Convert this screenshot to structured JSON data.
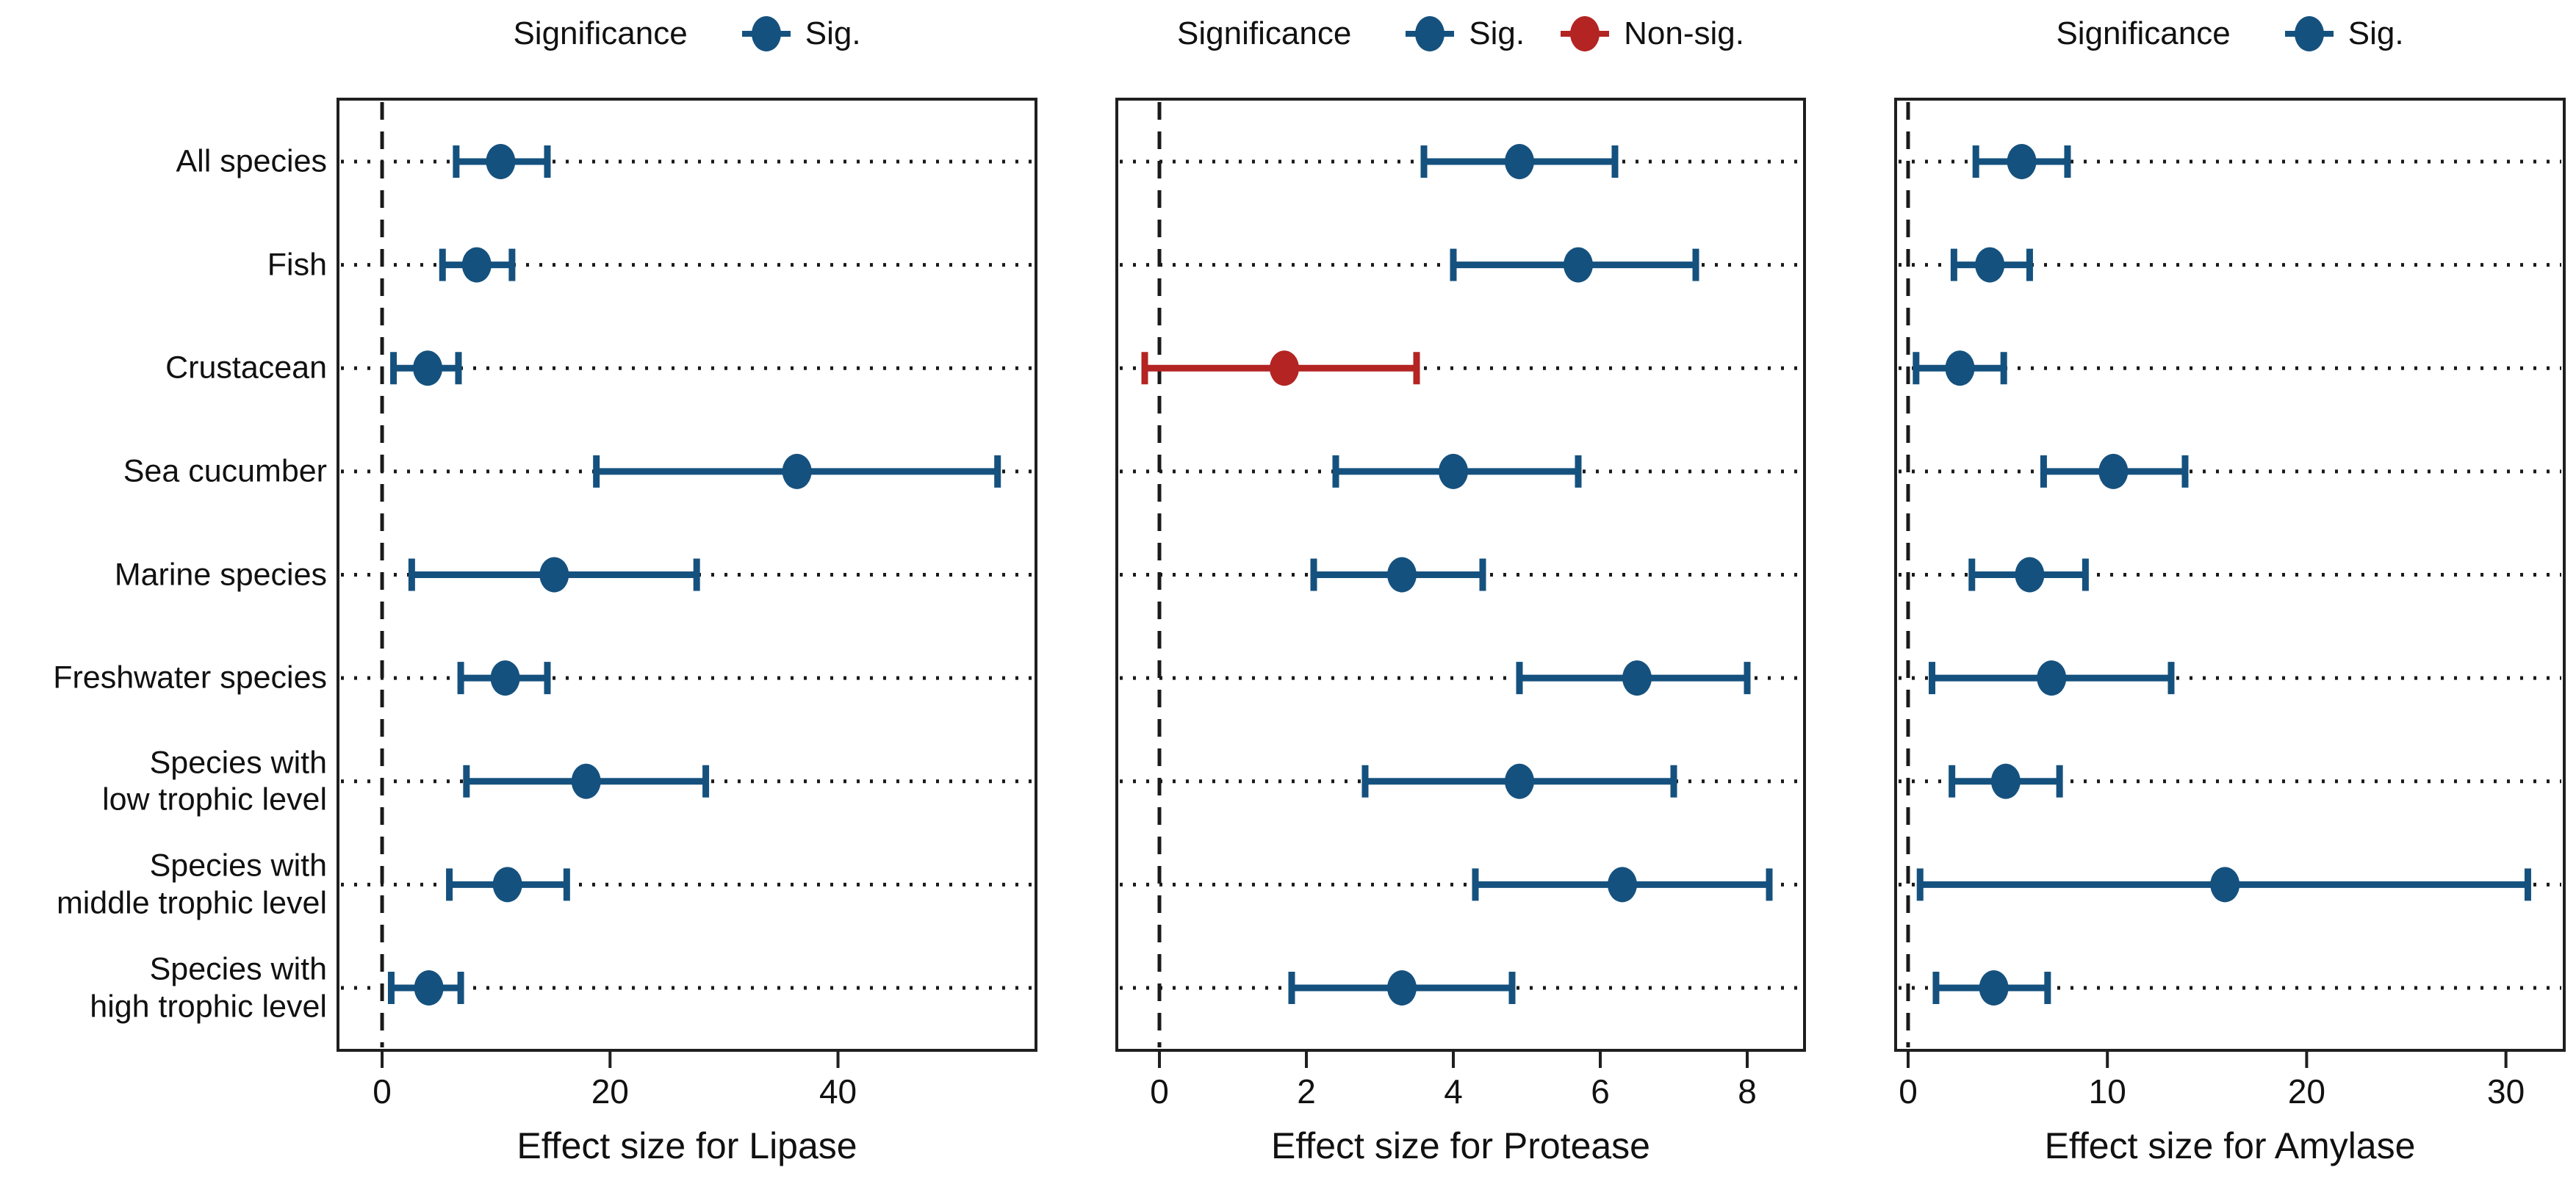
{
  "y_axis": {
    "categories": [
      "All species",
      "Fish",
      "Crustacean",
      "Sea cucumber",
      "Marine species",
      "Freshwater species",
      "Species with\nlow trophic level",
      "Species with\nmiddle trophic level",
      "Species with\nhigh trophic level"
    ]
  },
  "colors": {
    "significant": "#15517e",
    "non_significant": "#b32422",
    "axis": "#1f1f1f"
  },
  "chart_data": [
    {
      "type": "scatter",
      "subtype": "forest-plot-error-bars",
      "xlabel": "Effect size for Lipase",
      "legend_title": "Significance",
      "legend_items": [
        {
          "label": "Sig.",
          "color": "#15517e"
        }
      ],
      "categories": [
        "All species",
        "Fish",
        "Crustacean",
        "Sea cucumber",
        "Marine species",
        "Freshwater species",
        "Species with low trophic level",
        "Species with middle trophic level",
        "Species with high trophic level"
      ],
      "series": [
        {
          "name": "mean",
          "values": [
            10.4,
            8.3,
            4.0,
            36.4,
            15.1,
            10.8,
            17.9,
            11.0,
            4.1
          ]
        },
        {
          "name": "ci_low",
          "values": [
            6.5,
            5.3,
            1.0,
            18.8,
            2.6,
            6.9,
            7.4,
            5.9,
            0.8
          ]
        },
        {
          "name": "ci_high",
          "values": [
            14.5,
            11.4,
            6.7,
            54.0,
            27.6,
            14.5,
            28.4,
            16.2,
            6.9
          ]
        },
        {
          "name": "significant",
          "values": [
            true,
            true,
            true,
            true,
            true,
            true,
            true,
            true,
            true
          ]
        }
      ],
      "xticks": [
        0,
        20,
        40
      ],
      "xlim": [
        -4,
        57.5
      ],
      "refline_x": 0,
      "grid": "dotted-horizontal-rows",
      "legend_position": "top-center"
    },
    {
      "type": "scatter",
      "subtype": "forest-plot-error-bars",
      "xlabel": "Effect size for Protease",
      "legend_title": "Significance",
      "legend_items": [
        {
          "label": "Sig.",
          "color": "#15517e"
        },
        {
          "label": "Non-sig.",
          "color": "#b32422"
        }
      ],
      "categories": [
        "All species",
        "Fish",
        "Crustacean",
        "Sea cucumber",
        "Marine species",
        "Freshwater species",
        "Species with low trophic level",
        "Species with middle trophic level",
        "Species with high trophic level"
      ],
      "series": [
        {
          "name": "mean",
          "values": [
            4.9,
            5.7,
            1.7,
            4.0,
            3.3,
            6.5,
            4.9,
            6.3,
            3.3
          ]
        },
        {
          "name": "ci_low",
          "values": [
            3.6,
            4.0,
            -0.2,
            2.4,
            2.1,
            4.9,
            2.8,
            4.3,
            1.8
          ]
        },
        {
          "name": "ci_high",
          "values": [
            6.2,
            7.3,
            3.5,
            5.7,
            4.4,
            8.0,
            7.0,
            8.3,
            4.8
          ]
        },
        {
          "name": "significant",
          "values": [
            true,
            true,
            false,
            true,
            true,
            true,
            true,
            true,
            true
          ]
        }
      ],
      "xticks": [
        0,
        2,
        4,
        6,
        8
      ],
      "xlim": [
        -0.6,
        8.8
      ],
      "refline_x": 0,
      "grid": "dotted-horizontal-rows",
      "legend_position": "top-center"
    },
    {
      "type": "scatter",
      "subtype": "forest-plot-error-bars",
      "xlabel": "Effect size for Amylase",
      "legend_title": "Significance",
      "legend_items": [
        {
          "label": "Sig.",
          "color": "#15517e"
        }
      ],
      "categories": [
        "All species",
        "Fish",
        "Crustacean",
        "Sea cucumber",
        "Marine species",
        "Freshwater species",
        "Species with low trophic level",
        "Species with middle trophic level",
        "Species with high trophic level"
      ],
      "series": [
        {
          "name": "mean",
          "values": [
            5.7,
            4.1,
            2.6,
            10.3,
            6.1,
            7.2,
            4.9,
            15.9,
            4.3
          ]
        },
        {
          "name": "ci_low",
          "values": [
            3.4,
            2.3,
            0.4,
            6.8,
            3.2,
            1.2,
            2.2,
            0.6,
            1.4
          ]
        },
        {
          "name": "ci_high",
          "values": [
            8.0,
            6.1,
            4.8,
            13.9,
            8.9,
            13.2,
            7.6,
            31.1,
            7.0
          ]
        },
        {
          "name": "significant",
          "values": [
            true,
            true,
            true,
            true,
            true,
            true,
            true,
            true,
            true
          ]
        }
      ],
      "xticks": [
        0,
        10,
        20,
        30
      ],
      "xlim": [
        -0.7,
        33
      ],
      "refline_x": 0,
      "grid": "dotted-horizontal-rows",
      "legend_position": "top-center"
    }
  ]
}
